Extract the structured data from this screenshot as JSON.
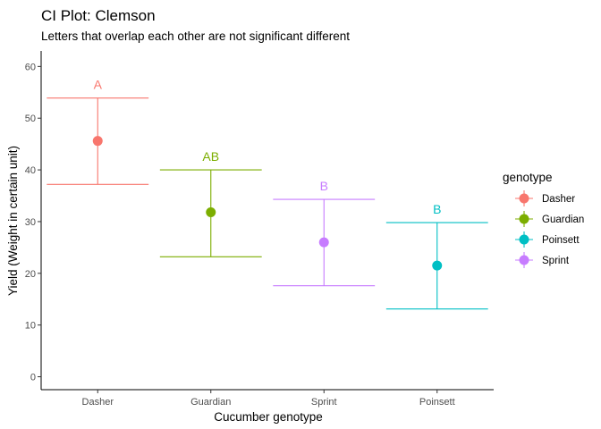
{
  "chart_data": {
    "type": "errorbar",
    "title": "CI Plot: Clemson",
    "subtitle": "Letters that overlap each other are not significant different",
    "xlabel": "Cucumber genotype",
    "ylabel": "Yield (Weight in certain unit)",
    "ylim": [
      -2.5,
      63
    ],
    "yticks": [
      0,
      10,
      20,
      30,
      40,
      50,
      60
    ],
    "grid": false,
    "legend": {
      "title": "genotype",
      "position": "right",
      "entries": [
        "Dasher",
        "Guardian",
        "Poinsett",
        "Sprint"
      ]
    },
    "categories": [
      "Dasher",
      "Guardian",
      "Sprint",
      "Poinsett"
    ],
    "series": [
      {
        "name": "Dasher",
        "color": "#F8766D",
        "mean": 45.6,
        "lower": 37.2,
        "upper": 53.9,
        "letter": "A"
      },
      {
        "name": "Guardian",
        "color": "#7CAE00",
        "mean": 31.8,
        "lower": 23.2,
        "upper": 40.0,
        "letter": "AB"
      },
      {
        "name": "Sprint",
        "color": "#C77CFF",
        "mean": 26.0,
        "lower": 17.6,
        "upper": 34.3,
        "letter": "B"
      },
      {
        "name": "Poinsett",
        "color": "#00BFC4",
        "mean": 21.5,
        "lower": 13.1,
        "upper": 29.8,
        "letter": "B"
      }
    ]
  }
}
